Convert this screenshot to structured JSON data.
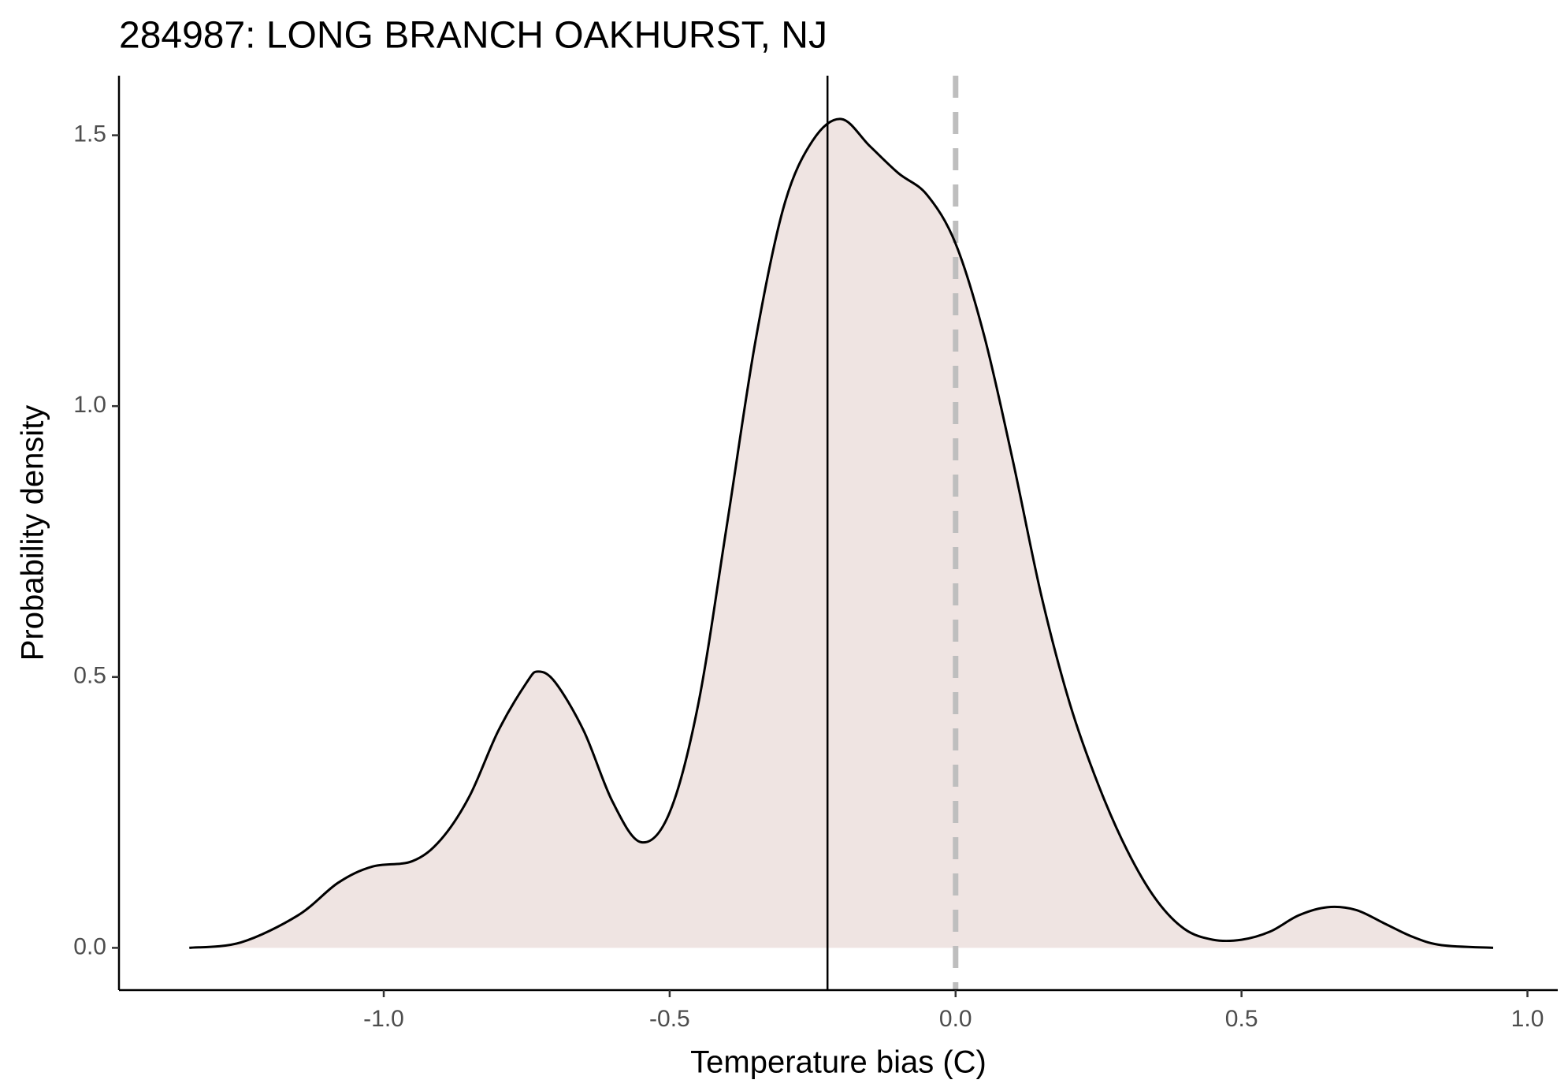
{
  "chart_data": {
    "type": "density",
    "title": "284987: LONG BRANCH OAKHURST, NJ",
    "xlabel": "Temperature bias (C)",
    "ylabel": "Probability density",
    "x": [
      -1.34,
      -1.25,
      -1.15,
      -1.08,
      -1.02,
      -0.95,
      -0.9,
      -0.85,
      -0.8,
      -0.75,
      -0.73,
      -0.7,
      -0.65,
      -0.6,
      -0.55,
      -0.5,
      -0.45,
      -0.4,
      -0.35,
      -0.3,
      -0.25,
      -0.2,
      -0.15,
      -0.1,
      -0.05,
      0.0,
      0.05,
      0.1,
      0.15,
      0.2,
      0.25,
      0.3,
      0.35,
      0.4,
      0.45,
      0.5,
      0.55,
      0.6,
      0.65,
      0.7,
      0.75,
      0.8,
      0.85,
      0.94
    ],
    "values": [
      0,
      0.01,
      0.06,
      0.12,
      0.15,
      0.16,
      0.2,
      0.28,
      0.4,
      0.49,
      0.51,
      0.49,
      0.4,
      0.27,
      0.195,
      0.25,
      0.45,
      0.78,
      1.12,
      1.37,
      1.49,
      1.53,
      1.48,
      1.43,
      1.39,
      1.3,
      1.13,
      0.9,
      0.65,
      0.45,
      0.3,
      0.18,
      0.09,
      0.035,
      0.015,
      0.015,
      0.03,
      0.06,
      0.075,
      0.07,
      0.045,
      0.02,
      0.005,
      0
    ],
    "fill": "#efe4e2",
    "color": "#000000",
    "vlines": [
      {
        "value": -0.224,
        "color": "#000000",
        "dashed": false
      },
      {
        "value": 0,
        "color": "#bebebe",
        "dashed": true
      }
    ],
    "xlim": [
      -1.463,
      1.053
    ],
    "xticks": [
      {
        "value": -1,
        "label": "-1.0"
      },
      -0.5,
      {
        "value": 0,
        "label": "0.0"
      },
      0.5,
      {
        "value": 1,
        "label": "1.0"
      }
    ],
    "ylim": [
      -0.078,
      1.61
    ],
    "yticks": [
      {
        "value": 0,
        "label": "0.0"
      },
      0.5,
      {
        "value": 1,
        "label": "1.0"
      },
      1.5
    ]
  }
}
